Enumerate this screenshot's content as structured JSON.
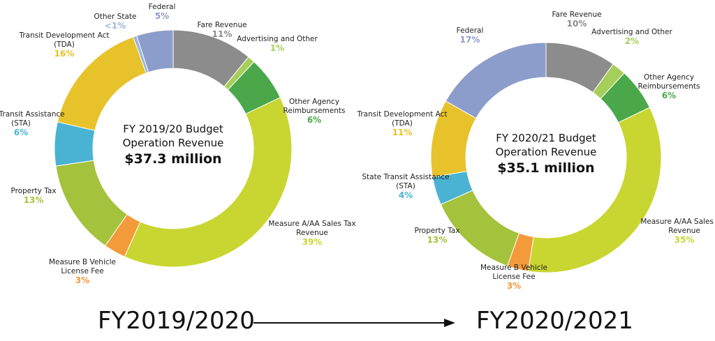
{
  "chart_data": [
    {
      "type": "donut",
      "title": "FY 2019/20 Budget",
      "subtitle": "Operation Revenue",
      "total_label": "$37.3 million",
      "categories": [
        "Fare Revenue",
        "Advertising and Other",
        "Other Agency Reimbursements",
        "Measure A/AA Sales Tax Revenue",
        "Measure B Vehicle License Fee",
        "Property Tax",
        "State Transit Assistance (STA)",
        "Transit Development Act (TDA)",
        "Other State",
        "Federal"
      ],
      "values": [
        11,
        1,
        6,
        39,
        3,
        13,
        6,
        16,
        0.5,
        5
      ],
      "value_labels": [
        "11%",
        "1%",
        "6%",
        "39%",
        "3%",
        "13%",
        "6%",
        "16%",
        "<1%",
        "5%"
      ],
      "colors": [
        "#8c8c8c",
        "#a6cf5a",
        "#4aa84a",
        "#c9d631",
        "#f39a3a",
        "#a4c23c",
        "#4ab3d4",
        "#e8c22a",
        "#9bb6dc",
        "#8d9dcb"
      ]
    },
    {
      "type": "donut",
      "title": "FY 2020/21 Budget",
      "subtitle": "Operation Revenue",
      "total_label": "$35.1 million",
      "categories": [
        "Fare Revenue",
        "Advertising and Other",
        "Other Agency Reimbursements",
        "Measure A/AA Sales Tax Revenue",
        "Measure B Vehicle License Fee",
        "Property Tax",
        "State Transit Assistance (STA)",
        "Transit Development Act (TDA)",
        "Federal"
      ],
      "values": [
        10,
        2,
        6,
        35,
        3,
        13,
        4,
        11,
        17
      ],
      "value_labels": [
        "10%",
        "2%",
        "6%",
        "35%",
        "3%",
        "13%",
        "4%",
        "11%",
        "17%"
      ],
      "colors": [
        "#8c8c8c",
        "#a6cf5a",
        "#4aa84a",
        "#c9d631",
        "#f39a3a",
        "#a4c23c",
        "#4ab3d4",
        "#e8c22a",
        "#8d9dcb"
      ]
    }
  ],
  "captions": [
    "FY2019/2020",
    "FY2020/2021"
  ]
}
